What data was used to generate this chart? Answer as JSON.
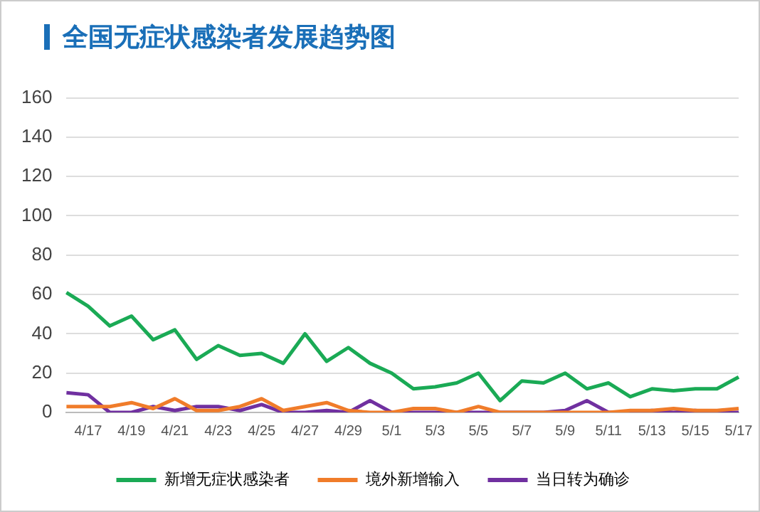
{
  "chart_data": {
    "type": "line",
    "title": "全国无症状感染者发展趋势图",
    "categories": [
      null,
      "4/17",
      null,
      "4/19",
      null,
      "4/21",
      null,
      "4/23",
      null,
      "4/25",
      null,
      "4/27",
      null,
      "4/29",
      null,
      "5/1",
      null,
      "5/3",
      null,
      "5/5",
      null,
      "5/7",
      null,
      "5/9",
      null,
      "5/11",
      null,
      "5/13",
      null,
      "5/15",
      null,
      "5/17"
    ],
    "series": [
      {
        "name": "新增无症状感染者",
        "color": "#1aaa55",
        "values": [
          61,
          54,
          44,
          49,
          37,
          42,
          27,
          34,
          29,
          30,
          25,
          40,
          26,
          33,
          25,
          20,
          12,
          13,
          15,
          20,
          6,
          16,
          15,
          20,
          12,
          15,
          8,
          12,
          11,
          12,
          12,
          18
        ]
      },
      {
        "name": "境外新增输入",
        "color": "#f07c2a",
        "values": [
          3,
          3,
          3,
          5,
          2,
          7,
          1,
          1,
          3,
          7,
          1,
          3,
          5,
          1,
          0,
          0,
          2,
          2,
          0,
          3,
          0,
          0,
          0,
          0,
          0,
          0,
          1,
          1,
          2,
          1,
          1,
          2
        ]
      },
      {
        "name": "当日转为确诊",
        "color": "#7030a0",
        "values": [
          10,
          9,
          0,
          0,
          3,
          1,
          3,
          3,
          1,
          4,
          0,
          0,
          1,
          0,
          6,
          0,
          0,
          0,
          0,
          0,
          0,
          0,
          0,
          1,
          6,
          0,
          0,
          1,
          0,
          1,
          0,
          0
        ]
      }
    ],
    "ylim": [
      0,
      160
    ],
    "yticks": [
      0,
      20,
      40,
      60,
      80,
      100,
      120,
      140,
      160
    ],
    "grid": "y",
    "legend": "bottom",
    "marker": "none",
    "line_style": "solid"
  }
}
